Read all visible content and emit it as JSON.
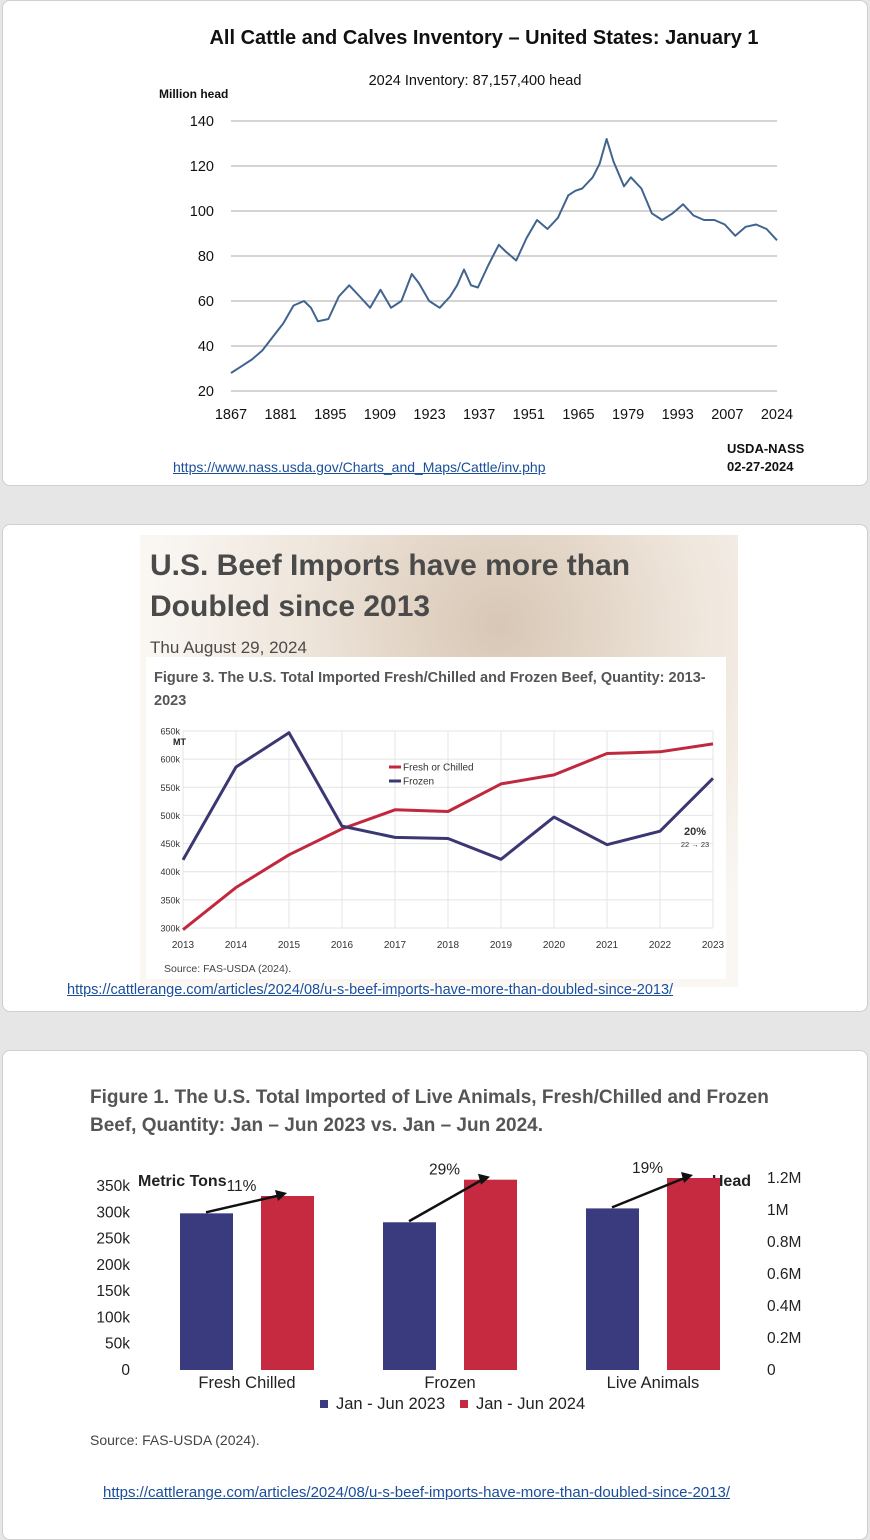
{
  "panel1": {
    "link": "https://www.nass.usda.gov/Charts_and_Maps/Cattle/inv.php",
    "source": "USDA-NASS",
    "source_date": "02-27-2024"
  },
  "panel2": {
    "headline_line1": "U.S. Beef Imports have more than",
    "headline_line2": "Doubled since 2013",
    "date": "Thu August 29, 2024",
    "link": "https://cattlerange.com/articles/2024/08/u-s-beef-imports-have-more-than-doubled-since-2013/"
  },
  "panel3": {
    "link": "https://cattlerange.com/articles/2024/08/u-s-beef-imports-have-more-than-doubled-since-2013/"
  },
  "colors": {
    "line1": "#41648f",
    "fresh": "#c0283e",
    "frozen": "#3a3773",
    "bar2023": "#3a3a7e",
    "bar2024": "#c52a40",
    "link": "#1a4e9c"
  },
  "chart_data": [
    {
      "type": "line",
      "title": "All Cattle and Calves Inventory – United States: January 1",
      "subtitle": "2024 Inventory: 87,157,400 head",
      "ylabel": "Million head",
      "xlabel": "",
      "ylim": [
        20,
        140
      ],
      "yticks": [
        "140",
        "120",
        "100",
        "80",
        "60",
        "40",
        "20"
      ],
      "xticks": [
        "1867",
        "1881",
        "1895",
        "1909",
        "1923",
        "1937",
        "1951",
        "1965",
        "1979",
        "1993",
        "2007",
        "2024"
      ],
      "grid": true,
      "series": [
        {
          "name": "All cattle and calves",
          "x": [
            1867,
            1870,
            1873,
            1876,
            1879,
            1882,
            1885,
            1888,
            1890,
            1892,
            1895,
            1898,
            1901,
            1904,
            1907,
            1910,
            1913,
            1916,
            1919,
            1921,
            1924,
            1927,
            1930,
            1932,
            1934,
            1936,
            1938,
            1941,
            1944,
            1946,
            1949,
            1952,
            1955,
            1958,
            1961,
            1964,
            1966,
            1968,
            1971,
            1973,
            1975,
            1977,
            1980,
            1982,
            1985,
            1988,
            1991,
            1994,
            1997,
            2000,
            2003,
            2006,
            2009,
            2012,
            2015,
            2018,
            2021,
            2024
          ],
          "values": [
            28,
            31,
            34,
            38,
            44,
            50,
            58,
            60,
            57,
            51,
            52,
            62,
            67,
            62,
            57,
            65,
            57,
            60,
            72,
            68,
            60,
            57,
            62,
            67,
            74,
            67,
            66,
            76,
            85,
            82,
            78,
            88,
            96,
            92,
            97,
            107,
            109,
            110,
            115,
            121,
            132,
            122,
            111,
            115,
            110,
            99,
            96,
            99,
            103,
            98,
            96,
            96,
            94,
            89,
            93,
            94,
            92,
            87
          ]
        }
      ]
    },
    {
      "type": "line",
      "title": "Figure 3. The U.S. Total Imported Fresh/Chilled and Frozen Beef, Quantity: 2013-2023",
      "ylabel": "MT",
      "xlabel": "",
      "ylim": [
        300000,
        650000
      ],
      "yticks": [
        "650k",
        "600k",
        "550k",
        "500k",
        "450k",
        "400k",
        "350k",
        "300k"
      ],
      "categories": [
        "2013",
        "2014",
        "2015",
        "2016",
        "2017",
        "2018",
        "2019",
        "2020",
        "2021",
        "2022",
        "2023"
      ],
      "series": [
        {
          "name": "Fresh or Chilled",
          "values": [
            297000,
            372000,
            430000,
            476000,
            510000,
            507000,
            556000,
            572000,
            610000,
            613000,
            627000
          ]
        },
        {
          "name": "Frozen",
          "values": [
            421000,
            586000,
            647000,
            481000,
            461000,
            459000,
            422000,
            497000,
            448000,
            472000,
            566000
          ]
        }
      ],
      "annotation_pct": "20%",
      "annotation_range": "22 → 23",
      "source": "Source: FAS-USDA (2024).",
      "legend": "top-center"
    },
    {
      "type": "bar",
      "title": "Figure 1. The U.S. Total Imported of Live Animals, Fresh/Chilled and Frozen Beef, Quantity: Jan – Jun 2023 vs. Jan – Jun 2024.",
      "ylabel": "Metric Tons",
      "y2label": "Head",
      "ylim": [
        0,
        350000
      ],
      "y2lim": [
        0,
        1200000
      ],
      "yticks": [
        "350k",
        "300k",
        "250k",
        "200k",
        "150k",
        "100k",
        "50k",
        "0"
      ],
      "y2ticks": [
        "1.2M",
        "1M",
        "0.8M",
        "0.6M",
        "0.4M",
        "0.2M",
        "0"
      ],
      "categories": [
        "Fresh Chilled",
        "Frozen",
        "Live Animals"
      ],
      "series": [
        {
          "name": "Jan - Jun 2023",
          "values": [
            298000,
            281000,
            1010000
          ]
        },
        {
          "name": "Jan - Jun 2024",
          "values": [
            331000,
            362000,
            1200000
          ]
        }
      ],
      "pct_change": [
        "11%",
        "29%",
        "19%"
      ],
      "source": "Source: FAS-USDA (2024).",
      "legend": "bottom"
    }
  ]
}
